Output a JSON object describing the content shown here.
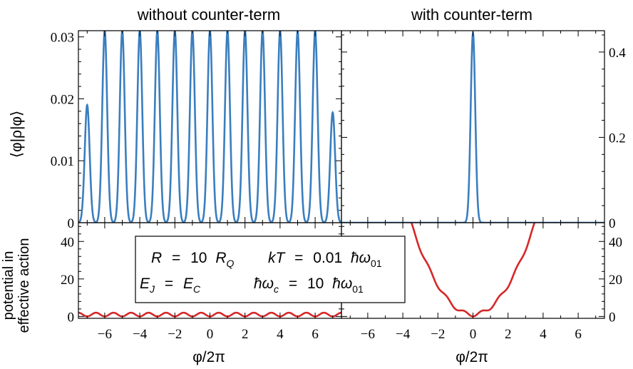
{
  "chart_data": [
    {
      "type": "line",
      "panel": "top-left",
      "title": "without counter-term",
      "ylabel": "⟨φ|ρ|φ⟩",
      "xlim": [
        -7.5,
        7.5
      ],
      "ylim": [
        0,
        0.031
      ],
      "yticks": [
        0,
        0.01,
        0.02,
        0.03
      ],
      "ytick_labels": [
        "0",
        "0.01",
        "0.02",
        "0.03"
      ],
      "series": [
        {
          "description": "periodic density with 15 peaks at integer φ/2π",
          "peak_x": [
            -7,
            -6,
            -5,
            -4,
            -3,
            -2,
            -1,
            0,
            1,
            2,
            3,
            4,
            5,
            6,
            7
          ],
          "peak_y": [
            0.019,
            0.031,
            0.031,
            0.031,
            0.031,
            0.031,
            0.031,
            0.031,
            0.031,
            0.031,
            0.031,
            0.031,
            0.031,
            0.031,
            0.0178
          ],
          "color": "#3a7ebf"
        }
      ]
    },
    {
      "type": "line",
      "panel": "top-right",
      "title": "with counter-term",
      "xlim": [
        -7.5,
        7.5
      ],
      "ylim": [
        0,
        0.45
      ],
      "yticks": [
        0,
        0.2,
        0.4
      ],
      "ytick_labels": [
        "0",
        "0.2",
        "0.4"
      ],
      "series": [
        {
          "description": "single peak at 0",
          "peak_x": [
            0
          ],
          "peak_y": [
            0.445
          ],
          "color": "#3a7ebf"
        }
      ]
    },
    {
      "type": "line",
      "panel": "bottom-left",
      "xlabel": "φ/2π",
      "ylabel": "potential in effective action",
      "xlim": [
        -7.5,
        7.5
      ],
      "ylim": [
        -1,
        50
      ],
      "xticks": [
        -6,
        -4,
        -2,
        0,
        2,
        4,
        6
      ],
      "xtick_labels": [
        "−6",
        "−4",
        "−2",
        "0",
        "2",
        "4",
        "6"
      ],
      "yticks": [
        0,
        20,
        40
      ],
      "ytick_labels": [
        "0",
        "20",
        "40"
      ],
      "series": [
        {
          "description": "small periodic cosine potential",
          "amplitude": 1,
          "offset": 1,
          "color": "#d62728"
        }
      ]
    },
    {
      "type": "line",
      "panel": "bottom-right",
      "xlabel": "φ/2π",
      "xlim": [
        -7.5,
        7.5
      ],
      "ylim": [
        -1,
        50
      ],
      "xticks": [
        -6,
        -4,
        -2,
        0,
        2,
        4,
        6
      ],
      "xtick_labels": [
        "−6",
        "−4",
        "−2",
        "0",
        "2",
        "4",
        "6"
      ],
      "yticks": [
        0,
        20,
        40
      ],
      "ytick_labels": [
        "0",
        "20",
        "40"
      ],
      "series": [
        {
          "description": "periodic potential plus quadratic counter-term",
          "quadratic_coeff": 3.9,
          "amplitude": 1,
          "offset": 1,
          "color": "#d62728"
        }
      ]
    }
  ],
  "legend": {
    "line1_left": {
      "var": "R",
      "eq": "=",
      "val": "10",
      "unit": "R",
      "unit_sub": "Q"
    },
    "line1_right": {
      "var": "kT",
      "eq": "=",
      "val": "0.01",
      "unit": "ħω",
      "unit_sub": "01"
    },
    "line2_left": {
      "var": "E",
      "var_sub": "J",
      "eq": "=",
      "unit": "E",
      "unit_sub": "C"
    },
    "line2_right": {
      "var": "ħω",
      "var_sub": "c",
      "eq": "=",
      "val": "10",
      "unit": "ħω",
      "unit_sub": "01"
    }
  },
  "colors": {
    "density": "#3a7ebf",
    "potential": "#d62728"
  }
}
